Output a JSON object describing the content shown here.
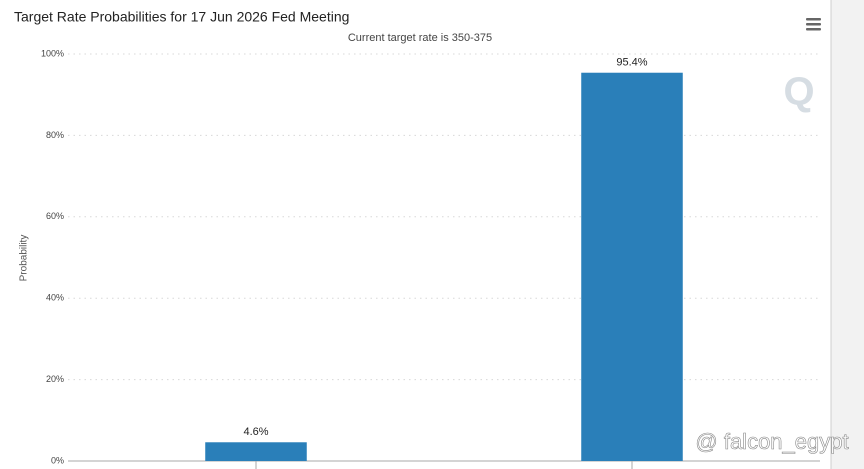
{
  "chart_data": {
    "type": "bar",
    "title": "Target Rate Probabilities for 17 Jun 2026 Fed Meeting",
    "subtitle": "Current target rate is 350-375",
    "y_label": "Probability",
    "categories": [
      null,
      null
    ],
    "values": [
      4.6,
      95.4
    ],
    "value_labels": [
      "4.6%",
      "95.4%"
    ],
    "color": "#2a7fb9",
    "ylim": [
      0,
      100
    ],
    "yticks": [
      {
        "value": 0,
        "label": "0%"
      },
      {
        "value": 20,
        "label": "20%"
      },
      {
        "value": 40,
        "label": "40%"
      },
      {
        "value": 60,
        "label": "60%"
      },
      {
        "value": 80,
        "label": "80%"
      },
      {
        "value": 100,
        "label": "100%"
      }
    ],
    "grid": true
  },
  "logo": "Q",
  "watermark": "@ falcon_egypt"
}
